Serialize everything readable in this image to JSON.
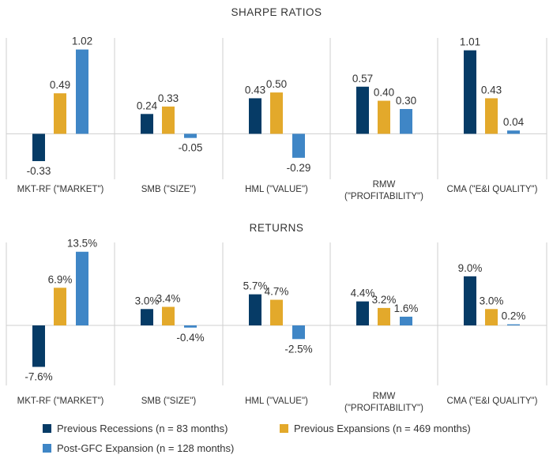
{
  "colors": {
    "previous_recessions": "#063b66",
    "previous_expansions": "#e3a92b",
    "post_gfc_expansion": "#3f86c6"
  },
  "legend": [
    {
      "key": "previous_recessions",
      "label": "Previous Recessions (n = 83 months)"
    },
    {
      "key": "previous_expansions",
      "label": "Previous Expansions (n = 469 months)"
    },
    {
      "key": "post_gfc_expansion",
      "label": "Post-GFC Expansion (n = 128 months)"
    }
  ],
  "chart_data": [
    {
      "type": "bar",
      "title": "SHARPE RATIOS",
      "categories": [
        "MKT-RF (\"MARKET\")",
        "SMB (\"SIZE\")",
        "HML (\"VALUE\")",
        "RMW (\"PROFITABILITY\")",
        "CMA (\"E&I QUALITY\")"
      ],
      "category_lines": [
        [
          "MKT-RF (\"MARKET\")"
        ],
        [
          "SMB (\"SIZE\")"
        ],
        [
          "HML (\"VALUE\")"
        ],
        [
          "RMW",
          "(\"PROFITABILITY\")"
        ],
        [
          "CMA (\"E&I QUALITY\")"
        ]
      ],
      "series": [
        {
          "name": "Previous Recessions (n = 83 months)",
          "color_key": "previous_recessions",
          "values": [
            -0.33,
            0.24,
            0.43,
            0.57,
            1.01
          ],
          "labels": [
            "-0.33",
            "0.24",
            "0.43",
            "0.57",
            "1.01"
          ]
        },
        {
          "name": "Previous Expansions (n = 469 months)",
          "color_key": "previous_expansions",
          "values": [
            0.49,
            0.33,
            0.5,
            0.4,
            0.43
          ],
          "labels": [
            "0.49",
            "0.33",
            "0.50",
            "0.40",
            "0.43"
          ]
        },
        {
          "name": "Post-GFC Expansion (n = 128 months)",
          "color_key": "post_gfc_expansion",
          "values": [
            1.02,
            -0.05,
            -0.29,
            0.3,
            0.04
          ],
          "labels": [
            "1.02",
            "-0.05",
            "-0.29",
            "0.30",
            "0.04"
          ]
        }
      ],
      "ylim": [
        -0.55,
        1.16
      ]
    },
    {
      "type": "bar",
      "title": "RETURNS",
      "categories": [
        "MKT-RF (\"MARKET\")",
        "SMB (\"SIZE\")",
        "HML (\"VALUE\")",
        "RMW (\"PROFITABILITY\")",
        "CMA (\"E&I QUALITY\")"
      ],
      "category_lines": [
        [
          "MKT-RF (\"MARKET\")"
        ],
        [
          "SMB (\"SIZE\")"
        ],
        [
          "HML (\"VALUE\")"
        ],
        [
          "RMW",
          "(\"PROFITABILITY\")"
        ],
        [
          "CMA (\"E&I QUALITY\")"
        ]
      ],
      "series": [
        {
          "name": "Previous Recessions (n = 83 months)",
          "color_key": "previous_recessions",
          "values": [
            -7.6,
            3.0,
            5.7,
            4.4,
            9.0
          ],
          "labels": [
            "-7.6%",
            "3.0%",
            "5.7%",
            "4.4%",
            "9.0%"
          ]
        },
        {
          "name": "Previous Expansions (n = 469 months)",
          "color_key": "previous_expansions",
          "values": [
            6.9,
            3.4,
            4.7,
            3.2,
            3.0
          ],
          "labels": [
            "6.9%",
            "3.4%",
            "4.7%",
            "3.2%",
            "3.0%"
          ]
        },
        {
          "name": "Post-GFC Expansion (n = 128 months)",
          "color_key": "post_gfc_expansion",
          "values": [
            13.5,
            -0.4,
            -2.5,
            1.6,
            0.2
          ],
          "labels": [
            "13.5%",
            "-0.4%",
            "-2.5%",
            "1.6%",
            "0.2%"
          ]
        }
      ],
      "ylim": [
        -11.0,
        15.2
      ]
    }
  ]
}
